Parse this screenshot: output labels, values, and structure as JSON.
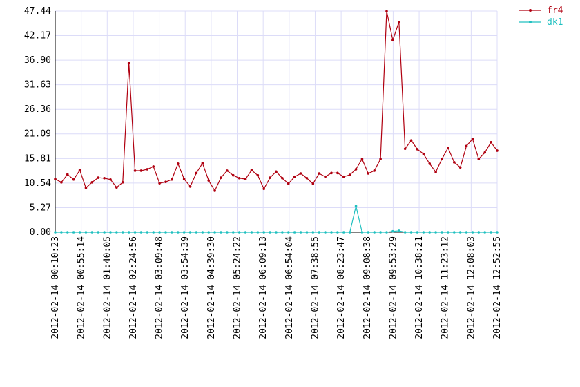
{
  "chart_data": {
    "type": "line",
    "x": [
      "2012-02-14 00:10:23",
      "2012-02-14 00:20:58",
      "2012-02-14 00:31:34",
      "2012-02-14 00:42:09",
      "2012-02-14 00:52:45",
      "2012-02-14 01:03:20",
      "2012-02-14 01:13:56",
      "2012-02-14 01:24:31",
      "2012-02-14 01:35:07",
      "2012-02-14 01:45:42",
      "2012-02-14 01:56:17",
      "2012-02-14 02:06:53",
      "2012-02-14 02:17:28",
      "2012-02-14 02:28:04",
      "2012-02-14 02:38:39",
      "2012-02-14 02:49:15",
      "2012-02-14 02:59:50",
      "2012-02-14 03:10:25",
      "2012-02-14 03:21:01",
      "2012-02-14 03:31:36",
      "2012-02-14 03:42:12",
      "2012-02-14 03:52:47",
      "2012-02-14 04:03:23",
      "2012-02-14 04:13:58",
      "2012-02-14 04:24:34",
      "2012-02-14 04:35:09",
      "2012-02-14 04:45:44",
      "2012-02-14 04:56:20",
      "2012-02-14 05:06:55",
      "2012-02-14 05:17:31",
      "2012-02-14 05:28:06",
      "2012-02-14 05:38:42",
      "2012-02-14 05:49:17",
      "2012-02-14 05:59:53",
      "2012-02-14 06:10:28",
      "2012-02-14 06:21:03",
      "2012-02-14 06:31:39",
      "2012-02-14 06:42:14",
      "2012-02-14 06:52:50",
      "2012-02-14 07:03:25",
      "2012-02-14 07:14:01",
      "2012-02-14 07:24:36",
      "2012-02-14 07:35:11",
      "2012-02-14 07:45:47",
      "2012-02-14 07:56:22",
      "2012-02-14 08:06:58",
      "2012-02-14 08:17:33",
      "2012-02-14 08:28:09",
      "2012-02-14 08:38:44",
      "2012-02-14 08:49:20",
      "2012-02-14 08:59:55",
      "2012-02-14 09:10:30",
      "2012-02-14 09:21:06",
      "2012-02-14 09:31:41",
      "2012-02-14 09:42:17",
      "2012-02-14 09:52:52",
      "2012-02-14 10:03:28",
      "2012-02-14 10:14:03",
      "2012-02-14 10:24:39",
      "2012-02-14 10:35:14",
      "2012-02-14 10:45:49",
      "2012-02-14 10:56:25",
      "2012-02-14 11:07:00",
      "2012-02-14 11:17:36",
      "2012-02-14 11:28:11",
      "2012-02-14 11:38:47",
      "2012-02-14 11:49:22",
      "2012-02-14 11:59:57",
      "2012-02-14 12:10:33",
      "2012-02-14 12:21:08",
      "2012-02-14 12:31:44",
      "2012-02-14 12:42:19",
      "2012-02-14 12:52:55"
    ],
    "series": [
      {
        "name": "fr4",
        "color": "#b00010",
        "values": [
          11.4,
          10.7,
          12.4,
          11.3,
          13.3,
          9.5,
          10.7,
          11.7,
          11.6,
          11.3,
          9.6,
          10.7,
          36.3,
          13.2,
          13.2,
          13.5,
          14.1,
          10.5,
          10.8,
          11.3,
          14.7,
          11.4,
          9.8,
          12.7,
          14.8,
          11.1,
          8.9,
          11.7,
          13.2,
          12.2,
          11.6,
          11.4,
          13.3,
          12.2,
          9.3,
          11.7,
          13.0,
          11.6,
          10.4,
          11.9,
          12.6,
          11.6,
          10.4,
          12.6,
          11.9,
          12.7,
          12.7,
          11.9,
          12.3,
          13.5,
          15.7,
          12.6,
          13.2,
          15.7,
          47.4,
          41.2,
          45.1,
          17.9,
          19.7,
          17.8,
          16.8,
          14.7,
          12.9,
          15.7,
          18.1,
          15.0,
          13.9,
          18.5,
          20.0,
          15.7,
          17.1,
          19.3,
          17.5
        ]
      },
      {
        "name": "dk1",
        "color": "#20c0c0",
        "values": [
          0,
          0,
          0,
          0,
          0,
          0,
          0,
          0,
          0,
          0,
          0,
          0,
          0,
          0,
          0,
          0,
          0,
          0,
          0,
          0,
          0,
          0,
          0,
          0,
          0,
          0,
          0,
          0,
          0,
          0,
          0,
          0,
          0,
          0,
          0,
          0,
          0,
          0,
          0,
          0,
          0,
          0,
          0,
          0,
          0,
          0,
          0,
          0,
          0,
          5.6,
          0,
          0,
          0,
          0,
          0,
          0.2,
          0.3,
          0,
          0,
          0,
          0,
          0,
          0,
          0,
          0,
          0,
          0,
          0,
          0,
          0,
          0,
          0,
          0
        ]
      }
    ],
    "xlim": [
      "2012-02-14 00:10:23",
      "2012-02-14 12:52:55"
    ],
    "xticks": [
      "2012-02-14 00:10:23",
      "2012-02-14 00:55:14",
      "2012-02-14 01:40:05",
      "2012-02-14 02:24:56",
      "2012-02-14 03:09:48",
      "2012-02-14 03:54:39",
      "2012-02-14 04:39:30",
      "2012-02-14 05:24:22",
      "2012-02-14 06:09:13",
      "2012-02-14 06:54:04",
      "2012-02-14 07:38:55",
      "2012-02-14 08:23:47",
      "2012-02-14 09:08:38",
      "2012-02-14 09:53:29",
      "2012-02-14 10:38:21",
      "2012-02-14 11:23:12",
      "2012-02-14 12:08:03",
      "2012-02-14 12:52:55"
    ],
    "ylim": [
      0,
      47.44
    ],
    "yticks": [
      {
        "value": 0,
        "label": "0.00"
      },
      5.27,
      10.54,
      15.81,
      21.09,
      26.36,
      31.63,
      {
        "value": 36.9,
        "label": "36.90"
      },
      42.17,
      47.44
    ],
    "grid": true,
    "legend": "top-right"
  }
}
